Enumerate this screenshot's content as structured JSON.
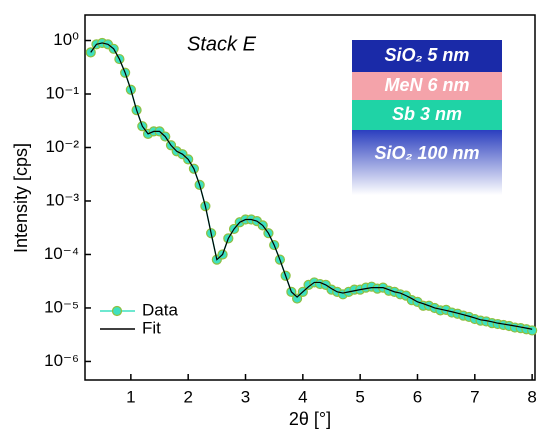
{
  "chart_data": {
    "type": "line",
    "annotation": "Stack E",
    "xlabel": "2θ [°]",
    "ylabel": "Intensity [cps]",
    "log_y": true,
    "legend": "lower left",
    "xlim": [
      0.2,
      8.05
    ],
    "ylim": [
      4.5e-07,
      3
    ],
    "xticks": [
      1,
      2,
      3,
      4,
      5,
      6,
      7,
      8
    ],
    "yticks": [
      {
        "value": 1,
        "label": "10⁰"
      },
      {
        "value": 0.1,
        "label": "10⁻¹"
      },
      {
        "value": 0.01,
        "label": "10⁻²"
      },
      {
        "value": 0.001,
        "label": "10⁻³"
      },
      {
        "value": 0.0001,
        "label": "10⁻⁴"
      },
      {
        "value": 1e-05,
        "label": "10⁻⁵"
      },
      {
        "value": 1e-06,
        "label": "10⁻⁶"
      }
    ],
    "x": [
      0.3,
      0.4,
      0.5,
      0.6,
      0.7,
      0.8,
      0.9,
      1.0,
      1.1,
      1.2,
      1.3,
      1.4,
      1.5,
      1.6,
      1.7,
      1.8,
      1.9,
      2.0,
      2.1,
      2.2,
      2.3,
      2.4,
      2.5,
      2.6,
      2.7,
      2.8,
      2.9,
      3.0,
      3.1,
      3.2,
      3.3,
      3.4,
      3.5,
      3.6,
      3.7,
      3.8,
      3.9,
      4.0,
      4.1,
      4.2,
      4.3,
      4.4,
      4.5,
      4.6,
      4.7,
      4.8,
      4.9,
      5.0,
      5.1,
      5.2,
      5.3,
      5.4,
      5.5,
      5.6,
      5.7,
      5.8,
      5.9,
      6.0,
      6.1,
      6.2,
      6.3,
      6.4,
      6.5,
      6.6,
      6.7,
      6.8,
      6.9,
      7.0,
      7.1,
      7.2,
      7.3,
      7.4,
      7.5,
      7.6,
      7.7,
      7.8,
      7.9,
      8.0
    ],
    "series": [
      {
        "name": "Data",
        "color": "#3ee0c0",
        "edge": "#8fbf3f",
        "marker": true,
        "values": [
          0.6,
          0.85,
          0.9,
          0.85,
          0.7,
          0.45,
          0.25,
          0.12,
          0.05,
          0.025,
          0.018,
          0.02,
          0.02,
          0.016,
          0.011,
          0.0085,
          0.0075,
          0.006,
          0.004,
          0.002,
          0.0008,
          0.00025,
          8e-05,
          0.0001,
          0.0002,
          0.0003,
          0.0004,
          0.00045,
          0.00045,
          0.00042,
          0.00035,
          0.00025,
          0.00015,
          8e-05,
          4e-05,
          2e-05,
          1.5e-05,
          2e-05,
          2.7e-05,
          3e-05,
          2.8e-05,
          2.7e-05,
          2.2e-05,
          2e-05,
          1.8e-05,
          2e-05,
          2.2e-05,
          2.2e-05,
          2.4e-05,
          2.5e-05,
          2.3e-05,
          2.4e-05,
          2.1e-05,
          2e-05,
          1.8e-05,
          1.7e-05,
          1.4e-05,
          1.3e-05,
          1.1e-05,
          1.1e-05,
          1e-05,
          9e-06,
          9.2e-06,
          8.2e-06,
          7.8e-06,
          7.2e-06,
          6.8e-06,
          6.2e-06,
          5.8e-06,
          5.6e-06,
          5.2e-06,
          5e-06,
          4.8e-06,
          4.6e-06,
          4.3e-06,
          4.2e-06,
          4e-06,
          3.8e-06
        ]
      },
      {
        "name": "Fit",
        "color": "#000000",
        "marker": false,
        "values": [
          0.6,
          0.85,
          0.9,
          0.85,
          0.7,
          0.45,
          0.25,
          0.12,
          0.05,
          0.025,
          0.018,
          0.02,
          0.02,
          0.016,
          0.011,
          0.0085,
          0.0075,
          0.006,
          0.004,
          0.002,
          0.0008,
          0.00025,
          8e-05,
          0.0001,
          0.0002,
          0.0003,
          0.0004,
          0.00045,
          0.00045,
          0.00042,
          0.00035,
          0.00025,
          0.00015,
          8e-05,
          4e-05,
          2e-05,
          1.6e-05,
          2e-05,
          2.5e-05,
          3e-05,
          3e-05,
          2.7e-05,
          2.3e-05,
          2e-05,
          1.9e-05,
          2e-05,
          2.1e-05,
          2.2e-05,
          2.3e-05,
          2.4e-05,
          2.4e-05,
          2.4e-05,
          2.2e-05,
          2e-05,
          1.9e-05,
          1.7e-05,
          1.5e-05,
          1.3e-05,
          1.2e-05,
          1.1e-05,
          1e-05,
          9.5e-06,
          9e-06,
          8.5e-06,
          8e-06,
          7.5e-06,
          7e-06,
          6.5e-06,
          6e-06,
          5.8e-06,
          5.5e-06,
          5.2e-06,
          5e-06,
          4.8e-06,
          4.6e-06,
          4.4e-06,
          4.2e-06,
          4e-06
        ]
      }
    ],
    "layers": [
      {
        "label": "SiO₂ 5 nm",
        "color": "#1a2aa8"
      },
      {
        "label": "MeN 6 nm",
        "color": "#f4a3aa"
      },
      {
        "label": "Sb 3 nm",
        "color": "#1fd3a6"
      },
      {
        "label": "SiO₂ 100 nm",
        "color": "#2b3fbf"
      }
    ]
  }
}
